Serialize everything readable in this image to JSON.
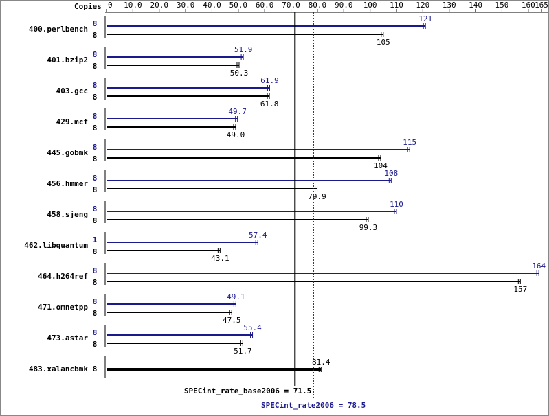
{
  "chart_data": {
    "type": "spec-bars",
    "copies_label": "Copies",
    "categories": [
      "400.perlbench",
      "401.bzip2",
      "403.gcc",
      "429.mcf",
      "445.gobmk",
      "456.hmmer",
      "458.sjeng",
      "462.libquantum",
      "464.h264ref",
      "471.omnetpp",
      "473.astar",
      "483.xalancbmk"
    ],
    "series": [
      {
        "color": "#1a1a8c",
        "copies": [
          8,
          8,
          8,
          8,
          8,
          8,
          8,
          1,
          8,
          8,
          8,
          null
        ],
        "values": [
          121,
          51.9,
          61.9,
          49.7,
          115,
          108,
          110,
          57.4,
          164,
          49.1,
          55.4,
          null
        ],
        "value_labels": [
          "121",
          "51.9",
          "61.9",
          "49.7",
          "115",
          "108",
          "110",
          "57.4",
          "164",
          "49.1",
          "55.4",
          null
        ]
      },
      {
        "color": "#000000",
        "copies": [
          8,
          8,
          8,
          8,
          8,
          8,
          8,
          8,
          8,
          8,
          8,
          8
        ],
        "values": [
          105,
          50.3,
          61.8,
          49.0,
          104,
          79.9,
          99.3,
          43.1,
          157,
          47.5,
          51.7,
          81.4
        ],
        "value_labels": [
          "105",
          "50.3",
          "61.8",
          "49.0",
          "104",
          "79.9",
          "99.3",
          "43.1",
          "157",
          "47.5",
          "51.7",
          "81.4"
        ]
      }
    ],
    "xlim": [
      0,
      165
    ],
    "xticks": [
      0,
      {
        "value": 10,
        "label": "10.0"
      },
      {
        "value": 20,
        "label": "20.0"
      },
      {
        "value": 30,
        "label": "30.0"
      },
      {
        "value": 40,
        "label": "40.0"
      },
      {
        "value": 50,
        "label": "50.0"
      },
      {
        "value": 60,
        "label": "60.0"
      },
      {
        "value": 70,
        "label": "70.0"
      },
      {
        "value": 80,
        "label": "80.0"
      },
      {
        "value": 90,
        "label": "90.0"
      },
      100,
      110,
      120,
      130,
      140,
      150,
      160,
      165
    ],
    "reference_lines": [
      {
        "value": 71.5,
        "label": "SPECint_rate_base2006 = 71.5",
        "color": "#000000",
        "dashed": false
      },
      {
        "value": 78.5,
        "label": "SPECint_rate2006 = 78.5",
        "color": "#1a1a8c",
        "dashed": true
      }
    ]
  }
}
